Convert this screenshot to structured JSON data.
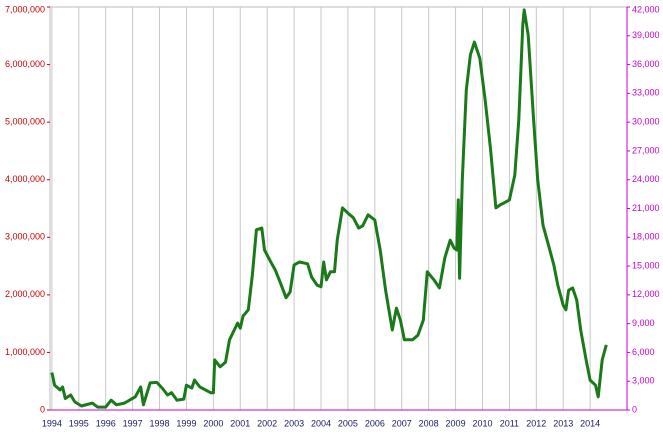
{
  "chart_data": {
    "type": "line",
    "x": [
      1994.0,
      1994.1,
      1994.3,
      1994.4,
      1994.5,
      1994.7,
      1994.85,
      1995.1,
      1995.5,
      1995.7,
      1996.0,
      1996.2,
      1996.4,
      1996.7,
      1997.1,
      1997.3,
      1997.4,
      1997.65,
      1997.9,
      1998.1,
      1998.3,
      1998.45,
      1998.65,
      1998.9,
      1999.0,
      1999.2,
      1999.3,
      1999.5,
      1999.9,
      2000.0,
      2000.05,
      2000.25,
      2000.45,
      2000.6,
      2000.9,
      2001.0,
      2001.1,
      2001.3,
      2001.45,
      2001.6,
      2001.8,
      2001.9,
      2002.1,
      2002.3,
      2002.5,
      2002.7,
      2002.85,
      2003.0,
      2003.2,
      2003.5,
      2003.65,
      2003.85,
      2004.0,
      2004.1,
      2004.2,
      2004.35,
      2004.5,
      2004.6,
      2004.8,
      2005.0,
      2005.2,
      2005.4,
      2005.55,
      2005.75,
      2006.0,
      2006.2,
      2006.4,
      2006.65,
      2006.8,
      2006.95,
      2007.1,
      2007.4,
      2007.6,
      2007.8,
      2007.95,
      2008.2,
      2008.4,
      2008.6,
      2008.8,
      2008.95,
      2009.05,
      2009.1,
      2009.15,
      2009.25,
      2009.4,
      2009.55,
      2009.7,
      2009.9,
      2010.1,
      2010.3,
      2010.5,
      2010.65,
      2010.85,
      2011.0,
      2011.2,
      2011.35,
      2011.5,
      2011.55,
      2011.7,
      2011.9,
      2012.05,
      2012.25,
      2012.45,
      2012.65,
      2012.8,
      2013.0,
      2013.1,
      2013.2,
      2013.35,
      2013.5,
      2013.65,
      2013.85,
      2014.0,
      2014.2,
      2014.3,
      2014.45,
      2014.6
    ],
    "series": [
      {
        "color": "#1a7a1a",
        "values": [
          650000,
          430000,
          350000,
          400000,
          200000,
          260000,
          140000,
          70000,
          120000,
          50000,
          50000,
          170000,
          90000,
          120000,
          230000,
          400000,
          90000,
          470000,
          480000,
          380000,
          260000,
          300000,
          170000,
          190000,
          430000,
          380000,
          520000,
          400000,
          300000,
          300000,
          870000,
          750000,
          830000,
          1220000,
          1510000,
          1420000,
          1630000,
          1740000,
          2350000,
          3130000,
          3160000,
          2780000,
          2600000,
          2430000,
          2200000,
          1950000,
          2050000,
          2520000,
          2570000,
          2540000,
          2310000,
          2170000,
          2140000,
          2570000,
          2260000,
          2400000,
          2400000,
          2950000,
          3510000,
          3420000,
          3340000,
          3160000,
          3200000,
          3390000,
          3300000,
          2780000,
          2080000,
          1390000,
          1770000,
          1560000,
          1220000,
          1220000,
          1300000,
          1560000,
          2400000,
          2260000,
          2120000,
          2640000,
          2950000,
          2810000,
          2780000,
          3650000,
          2290000,
          4000000,
          5560000,
          6170000,
          6390000,
          6110000,
          5380000,
          4520000,
          3510000,
          3560000,
          3610000,
          3650000,
          4080000,
          5040000,
          6690000,
          6950000,
          6510000,
          5040000,
          4000000,
          3210000,
          2870000,
          2520000,
          2170000,
          1820000,
          1740000,
          2080000,
          2120000,
          1910000,
          1390000,
          870000,
          520000,
          430000,
          230000,
          870000,
          1130000
        ]
      }
    ],
    "xlim": [
      1993.93,
      2015.37
    ],
    "xticks": [
      1994,
      1995,
      1996,
      1997,
      1998,
      1999,
      2000,
      2001,
      2002,
      2003,
      2004,
      2005,
      2006,
      2007,
      2008,
      2009,
      2010,
      2011,
      2012,
      2013,
      2014
    ],
    "ylim": [
      0,
      7000000
    ],
    "yticks": [
      0,
      {
        "value": 1000000,
        "label": "1,000,000"
      },
      {
        "value": 2000000,
        "label": "2,000,000"
      },
      {
        "value": 3000000,
        "label": "3,000,000"
      },
      {
        "value": 4000000,
        "label": "4,000,000"
      },
      {
        "value": 5000000,
        "label": "5,000,000"
      },
      {
        "value": 6000000,
        "label": "6,000,000"
      },
      {
        "value": 7000000,
        "label": "7,000,000"
      }
    ],
    "y2lim": [
      0,
      42000
    ],
    "y2ticks": [
      0,
      {
        "value": 3000,
        "label": "3,000"
      },
      {
        "value": 6000,
        "label": "6,000"
      },
      {
        "value": 9000,
        "label": "9,000"
      },
      {
        "value": 12000,
        "label": "12,000"
      },
      {
        "value": 15000,
        "label": "15,000"
      },
      {
        "value": 18000,
        "label": "18,000"
      },
      {
        "value": 21000,
        "label": "21,000"
      },
      {
        "value": 24000,
        "label": "24,000"
      },
      {
        "value": 27000,
        "label": "27,000"
      },
      {
        "value": 30000,
        "label": "30,000"
      },
      {
        "value": 33000,
        "label": "33,000"
      },
      {
        "value": 36000,
        "label": "36,000"
      },
      {
        "value": 39000,
        "label": "39,000"
      },
      {
        "value": 42000,
        "label": "42,000"
      }
    ],
    "grid": "x"
  }
}
